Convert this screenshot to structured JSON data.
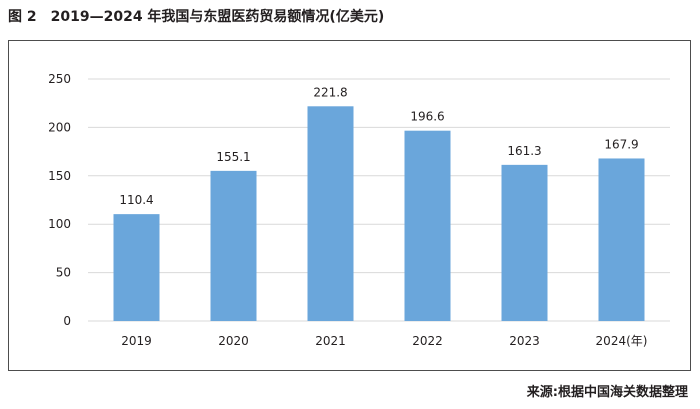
{
  "caption": {
    "figure_no": "图 2",
    "title": "2019—2024 年我国与东盟医药贸易额情况(亿美元)"
  },
  "source": "来源:根据中国海关数据整理",
  "chart_data": {
    "type": "bar",
    "title": "2019—2024 年我国与东盟医药贸易额情况(亿美元)",
    "xlabel": "年",
    "ylabel": "亿美元",
    "categories": [
      "2019",
      "2020",
      "2021",
      "2022",
      "2023",
      "2024"
    ],
    "category_labels": [
      "2019",
      "2020",
      "2021",
      "2022",
      "2023",
      "2024(年)"
    ],
    "values": [
      110.4,
      155.1,
      221.8,
      196.6,
      161.3,
      167.9
    ],
    "value_labels": [
      "110.4",
      "155.1",
      "221.8",
      "196.6",
      "161.3",
      "167.9"
    ],
    "ylim": [
      0,
      250
    ],
    "yticks": [
      0,
      50,
      100,
      150,
      200,
      250
    ],
    "grid": true,
    "bar_color": "#6aa6db",
    "grid_color": "#d9d9d9"
  }
}
